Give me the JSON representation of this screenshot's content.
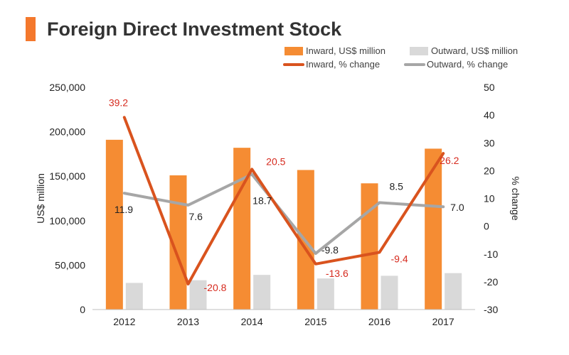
{
  "title": "Foreign Direct Investment Stock",
  "colors": {
    "accent": "#f4782c",
    "inward_bar": "#f58c33",
    "outward_bar": "#d9d9d9",
    "inward_line": "#d9531e",
    "outward_line": "#a6a6a6",
    "inward_label": "#d62a1e",
    "outward_label": "#222222"
  },
  "legend": {
    "inward_bar": "Inward, US$ million",
    "outward_bar": "Outward, US$ million",
    "inward_line": "Inward, % change",
    "outward_line": "Outward, % change"
  },
  "chart_data": {
    "type": "bar",
    "categories": [
      "2012",
      "2013",
      "2014",
      "2015",
      "2016",
      "2017"
    ],
    "ylabel": "US$ million",
    "y2label": "% change",
    "ylim": [
      0,
      250000
    ],
    "y2lim": [
      -30,
      50
    ],
    "yticks": [
      "0",
      "50,000",
      "100,000",
      "150,000",
      "200,000",
      "250,000"
    ],
    "y2ticks": [
      "-30",
      "-20",
      "-10",
      "0",
      "10",
      "20",
      "30",
      "40",
      "50"
    ],
    "legend_position": "top-right",
    "grid": false,
    "series": [
      {
        "name": "Inward, US$ million",
        "type": "bar",
        "axis": "left",
        "values": [
          191000,
          151000,
          182000,
          157000,
          142000,
          181000
        ]
      },
      {
        "name": "Outward, US$ million",
        "type": "bar",
        "axis": "left",
        "values": [
          30000,
          33000,
          39000,
          35000,
          38000,
          41000
        ]
      },
      {
        "name": "Inward, % change",
        "type": "line",
        "axis": "right",
        "values": [
          39.2,
          -20.8,
          20.5,
          -13.6,
          -9.4,
          26.2
        ],
        "labels": [
          "39.2",
          "-20.8",
          "20.5",
          "-13.6",
          "-9.4",
          "26.2"
        ]
      },
      {
        "name": "Outward, % change",
        "type": "line",
        "axis": "right",
        "values": [
          11.9,
          7.6,
          18.7,
          -9.8,
          8.5,
          7.0
        ],
        "labels": [
          "11.9",
          "7.6",
          "18.7",
          "-9.8",
          "8.5",
          "7.0"
        ]
      }
    ]
  }
}
